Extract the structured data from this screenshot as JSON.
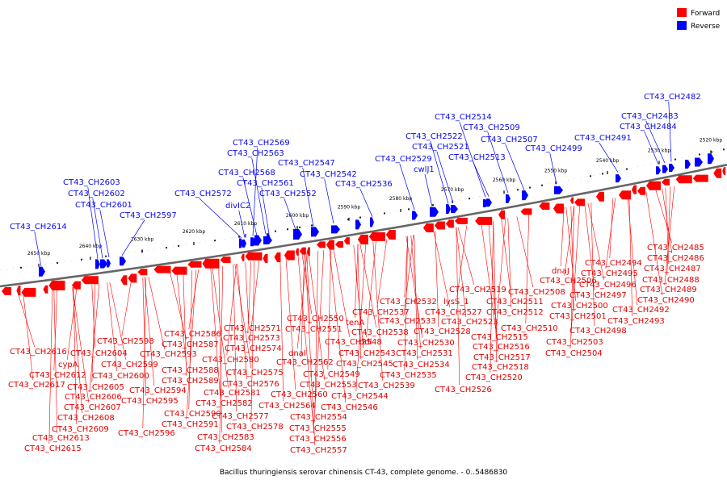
{
  "caption": "Bacillus thuringiensis serovar chinensis CT-43, complete genome. - 0..5486830",
  "legend": [
    {
      "label": "Forward",
      "color": "#ff0000"
    },
    {
      "label": "Reverse",
      "color": "#0000ff"
    }
  ],
  "colors": {
    "forward": "#ff0000",
    "reverse": "#0000ff",
    "forward_text": "#e00000",
    "reverse_text": "#0a0aee",
    "backbone": "#777777"
  },
  "scale_ticks": [
    "2520 kbp",
    "2530 kbp",
    "2540 kbp",
    "2550 kbp",
    "2560 kbp",
    "2570 kbp",
    "2580 kbp",
    "2590 kbp",
    "2600 kbp",
    "2610 kbp",
    "2620 kbp",
    "2630 kbp",
    "2640 kbp",
    "2650 kbp"
  ],
  "reverse_labels": [
    "CT43_CH2482",
    "CT43_CH2483",
    "CT43_CH2484",
    "CT43_CH2491",
    "CT43_CH2499",
    "CT43_CH2507",
    "CT43_CH2509",
    "CT43_CH2514",
    "CT43_CH2513",
    "CT43_CH2521",
    "CT43_CH2522",
    "CT43_CH2529",
    "cwlJ1",
    "CT43_CH2536",
    "CT43_CH2542",
    "CT43_CH2547",
    "CT43_CH2552",
    "CT43_CH2561",
    "CT43_CH2563",
    "CT43_CH2568",
    "CT43_CH2569",
    "divIC2",
    "CT43_CH2572",
    "CT43_CH2597",
    "CT43_CH2601",
    "CT43_CH2602",
    "CT43_CH2603",
    "CT43_CH2614"
  ],
  "forward_labels": [
    "CT43_CH2485",
    "CT43_CH2486",
    "CT43_CH2487",
    "CT43_CH2488",
    "CT43_CH2489",
    "CT43_CH2490",
    "CT43_CH2492",
    "CT43_CH2493",
    "CT43_CH2494",
    "CT43_CH2495",
    "CT43_CH2496",
    "CT43_CH2497",
    "CT43_CH2498",
    "dnaJ",
    "CT43_CH2506",
    "CT43_CH2508",
    "CT43_CH2500",
    "CT43_CH2501",
    "CT43_CH2503",
    "CT43_CH2504",
    "CT43_CH2519",
    "CT43_CH2511",
    "CT43_CH2512",
    "CT43_CH2510",
    "CT43_CH2515",
    "CT43_CH2516",
    "CT43_CH2517",
    "CT43_CH2518",
    "CT43_CH2520",
    "lysS_1",
    "CT43_CH2527",
    "CT43_CH2523",
    "CT43_CH2528",
    "CT43_CH2532",
    "CT43_CH2533",
    "CT43_CH2530",
    "CT43_CH2531",
    "CT43_CH2534",
    "CT43_CH2535",
    "CT43_CH2537",
    "CT43_CH2538",
    "CT43_CH2539",
    "CT43_CH2526",
    "tenA",
    "ddl",
    "CT43_CH2548",
    "CT43_CH2543",
    "CT43_CH2545",
    "CT43_CH2549",
    "CT43_CH2544",
    "CT43_CH2546",
    "CT43_CH2550",
    "CT43_CH2551",
    "CT43_CH2562",
    "dnaI",
    "CT43_CH2553",
    "CT43_CH2560",
    "CT43_CH2564",
    "CT43_CH2554",
    "CT43_CH2555",
    "CT43_CH2556",
    "CT43_CH2557",
    "CT43_CH2571",
    "CT43_CH2573",
    "CT43_CH2574",
    "CT43_CH2575",
    "CT43_CH2576",
    "CT43_CH2577",
    "CT43_CH2578",
    "CT43_CH2580",
    "CT43_CH2581",
    "CT43_CH2582",
    "CT43_CH2583",
    "CT43_CH2584",
    "CT43_CH2586",
    "CT43_CH2587",
    "CT43_CH2588",
    "CT43_CH2589",
    "CT43_CH2590",
    "CT43_CH2591",
    "CT43_CH2593",
    "CT43_CH2594",
    "CT43_CH2595",
    "CT43_CH2596",
    "CT43_CH2598",
    "CT43_CH2599",
    "CT43_CH2600",
    "CT43_CH2604",
    "CT43_CH2605",
    "CT43_CH2606",
    "CT43_CH2607",
    "CT43_CH2608",
    "CT43_CH2609",
    "CT43_CH2612",
    "cypA",
    "CT43_CH2616",
    "CT43_CH2617",
    "CT43_CH2613",
    "CT43_CH2615"
  ]
}
